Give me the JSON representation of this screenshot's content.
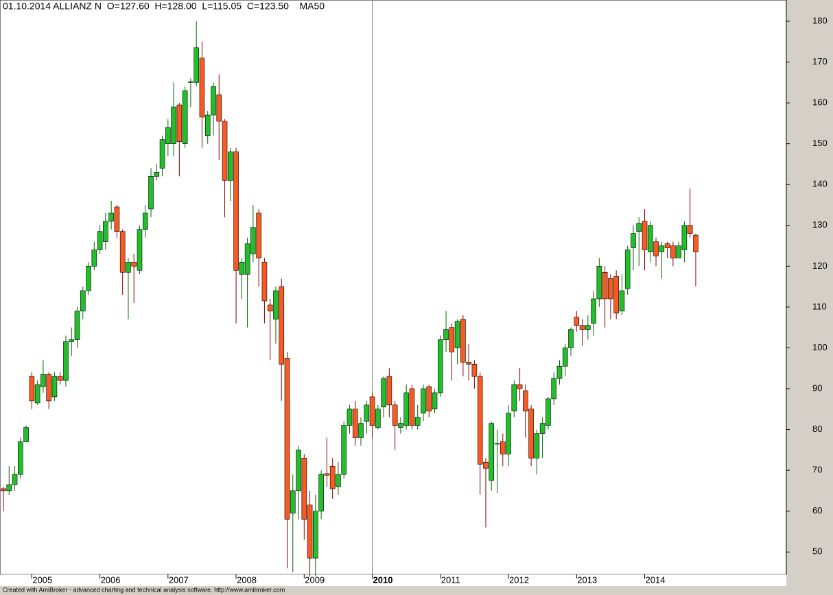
{
  "chart_data": {
    "type": "candlestick",
    "title": "01.10.2014 ALLIANZ N  O=127.60  H=128.00  L=115.05  C=123.50    MA50",
    "footer": "Created with AmiBroker - advanced charting and technical analysis software. http://www.amibroker.com",
    "categories": [
      null,
      null,
      null,
      null,
      null,
      "2005",
      null,
      null,
      null,
      null,
      null,
      null,
      null,
      null,
      null,
      null,
      null,
      "2006",
      null,
      null,
      null,
      null,
      null,
      null,
      null,
      null,
      null,
      null,
      null,
      "2007",
      null,
      null,
      null,
      null,
      null,
      null,
      null,
      null,
      null,
      null,
      null,
      "2008",
      null,
      null,
      null,
      null,
      null,
      null,
      null,
      null,
      null,
      null,
      null,
      "2009",
      null,
      null,
      null,
      null,
      null,
      null,
      null,
      null,
      null,
      null,
      null,
      "2010",
      null,
      null,
      null,
      null,
      null,
      null,
      null,
      null,
      null,
      null,
      null,
      "2011",
      null,
      null,
      null,
      null,
      null,
      null,
      null,
      null,
      null,
      null,
      null,
      "2012",
      null,
      null,
      null,
      null,
      null,
      null,
      null,
      null,
      null,
      null,
      null,
      "2013",
      null,
      null,
      null,
      null,
      null,
      null,
      null,
      null,
      null,
      null,
      null,
      "2014",
      null,
      null,
      null,
      null,
      null,
      null,
      null,
      null,
      null
    ],
    "cursor": "2010",
    "open": [
      65.5,
      65,
      66.5,
      69,
      77,
      93,
      86.5,
      90.5,
      93.5,
      88,
      93,
      92,
      101.5,
      102,
      109,
      114,
      120,
      124,
      126,
      131,
      134.5,
      128.5,
      118.5,
      121,
      119,
      129,
      134,
      142,
      144,
      150,
      150,
      159.5,
      150,
      165,
      165,
      171,
      152,
      157,
      162,
      155.5,
      141,
      148,
      118,
      118,
      123,
      133,
      121,
      110.5,
      107,
      115,
      97.5,
      59.5,
      65,
      73,
      61.5,
      48.5,
      60,
      69.2,
      71,
      66,
      69,
      81,
      85,
      78,
      82,
      88,
      80.5,
      85.5,
      93,
      86,
      80.5,
      81,
      90,
      81,
      84,
      90.5,
      85,
      89,
      102,
      105,
      100,
      107,
      96.5,
      96,
      93,
      72,
      67.5,
      76.4,
      77,
      74,
      84.5,
      91,
      89.5,
      85,
      73,
      79,
      81,
      87.5,
      92.5,
      95.5,
      100,
      107.5,
      105.5,
      104.5,
      106,
      112,
      118.5,
      117,
      117.5,
      109,
      114.5,
      124.5,
      128.5,
      131,
      123.5,
      126,
      123.5,
      125.5,
      125,
      122,
      124,
      130,
      127.6
    ],
    "high": [
      66,
      71,
      71,
      78,
      81,
      94,
      92,
      97,
      94,
      94,
      94,
      103,
      105,
      110,
      115,
      121,
      126,
      130,
      133,
      136,
      135,
      129,
      122,
      123,
      130,
      135,
      144,
      145,
      152,
      156,
      165,
      160,
      164,
      166,
      180,
      175,
      158,
      165,
      167,
      156,
      149,
      149,
      122,
      127,
      135,
      134,
      122,
      112,
      115,
      117,
      99,
      69,
      76,
      74,
      65,
      64,
      70,
      78,
      73,
      72,
      82,
      86,
      87,
      83,
      87,
      89,
      86,
      93,
      95,
      87,
      83,
      91,
      91,
      86,
      91,
      91,
      90,
      103,
      109,
      106,
      107,
      108,
      101,
      97,
      94,
      73,
      82,
      80,
      79,
      86,
      92,
      95,
      91,
      86,
      80,
      83,
      88,
      94,
      97,
      101,
      105,
      109,
      107,
      108,
      114,
      122,
      120,
      118,
      119,
      118,
      125,
      130,
      132,
      134,
      131,
      127,
      126,
      126,
      126,
      126,
      131,
      139,
      128
    ],
    "low": [
      60,
      64,
      65,
      68,
      77,
      85,
      86,
      89,
      85,
      87,
      91,
      90.5,
      98,
      100,
      107,
      113,
      119,
      123,
      124,
      129,
      127,
      113,
      107,
      111,
      118,
      127,
      132,
      141,
      142,
      147,
      147,
      142,
      149,
      159,
      164,
      149,
      150,
      152,
      146,
      132,
      136,
      106,
      112,
      105,
      121,
      115,
      106,
      97,
      101,
      87,
      46,
      45,
      58,
      53,
      44,
      44,
      58,
      66,
      63,
      64,
      68,
      79,
      76,
      76,
      79,
      78,
      80,
      83,
      83,
      75,
      79,
      80,
      80,
      80,
      82,
      83,
      84,
      88,
      99,
      92,
      96,
      93,
      92,
      90,
      64,
      56,
      65,
      64.5,
      71,
      71,
      83,
      87,
      78,
      71,
      69,
      73,
      80,
      86,
      91,
      93,
      98,
      104,
      100.5,
      102,
      103,
      110,
      105,
      107,
      107,
      108,
      113,
      119,
      120,
      119,
      121,
      120,
      117,
      122,
      120,
      122,
      121,
      127,
      115.05
    ],
    "close": [
      65,
      66.5,
      69,
      77,
      80.5,
      87,
      91,
      93.5,
      87,
      93,
      92,
      101.5,
      102,
      109,
      114,
      120,
      124,
      128.5,
      131,
      133,
      128.5,
      118.5,
      121,
      120,
      129,
      133,
      142,
      143,
      151,
      154,
      159,
      150.5,
      163,
      165.2,
      173.5,
      156.5,
      157,
      164,
      155.5,
      141,
      148,
      119,
      121,
      125.5,
      129.5,
      122,
      111.5,
      109,
      114,
      96,
      58,
      65,
      75,
      58,
      48.5,
      60,
      69,
      68.8,
      65.5,
      69,
      81,
      85,
      78,
      81.5,
      86,
      81,
      85,
      92.5,
      86,
      81,
      81.5,
      89,
      81,
      83,
      90,
      84.5,
      89,
      102,
      104.5,
      99,
      106.5,
      96.5,
      96,
      93,
      71.5,
      70.5,
      81.5,
      76.6,
      74,
      84,
      91,
      90,
      84.5,
      73,
      79,
      81.5,
      87.5,
      92.5,
      95.5,
      100,
      104.5,
      105.5,
      104.5,
      105.5,
      112,
      120,
      112,
      112,
      108.5,
      114,
      124,
      128,
      130.5,
      124,
      130,
      122.5,
      125,
      124.5,
      122,
      125,
      130,
      128,
      123.5
    ],
    "up_color": "#22bf2a",
    "down_color": "#f85a22",
    "ylim": [
      44.5,
      185.2
    ],
    "yticks": [
      50,
      60,
      70,
      80,
      90,
      100,
      110,
      120,
      130,
      140,
      150,
      160,
      170,
      180
    ]
  }
}
